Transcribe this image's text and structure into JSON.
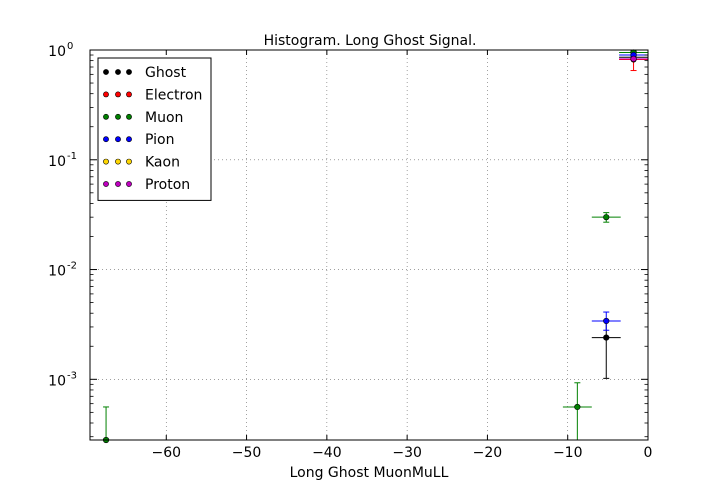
{
  "chart_data": {
    "type": "scatter",
    "title": "Histogram. Long Ghost Signal.",
    "xlabel": "Long Ghost MuonMuLL",
    "ylabel": "",
    "xlim": [
      -69.5,
      0
    ],
    "ylim": [
      0.00028,
      1.0
    ],
    "yscale": "log",
    "grid": true,
    "legend_position": "top-left",
    "x_ticks": [
      {
        "value": -60,
        "label": "−60"
      },
      {
        "value": -50,
        "label": "−50"
      },
      {
        "value": -40,
        "label": "−40"
      },
      {
        "value": -30,
        "label": "−30"
      },
      {
        "value": -20,
        "label": "−20"
      },
      {
        "value": -10,
        "label": "−10"
      },
      {
        "value": 0,
        "label": "0"
      }
    ],
    "y_ticks": [
      {
        "value": 0.001,
        "base": "10",
        "exp": "-3"
      },
      {
        "value": 0.01,
        "base": "10",
        "exp": "-2"
      },
      {
        "value": 0.1,
        "base": "10",
        "exp": "-1"
      },
      {
        "value": 1,
        "base": "10",
        "exp": "0"
      }
    ],
    "series": [
      {
        "name": "Ghost",
        "color": "#000000",
        "points": [
          {
            "x": -5.2,
            "xerr": 1.8,
            "y": 0.0024,
            "ylo": 0.00102,
            "yhi": 0.0034
          },
          {
            "x": -1.8,
            "xerr": 1.8,
            "y": 0.86,
            "ylo": 0.83,
            "yhi": 0.89
          }
        ]
      },
      {
        "name": "Electron",
        "color": "#ff0000",
        "points": [
          {
            "x": -1.8,
            "xerr": 1.8,
            "y": 0.82,
            "ylo": 0.65,
            "yhi": 0.97
          }
        ]
      },
      {
        "name": "Muon",
        "color": "#008000",
        "points": [
          {
            "x": -67.5,
            "xerr": 1.8,
            "y": 0.00028,
            "ylo": 0.00028,
            "yhi": 0.00056
          },
          {
            "x": -8.8,
            "xerr": 1.8,
            "y": 0.00056,
            "ylo": 0.00028,
            "yhi": 0.00093
          },
          {
            "x": -5.2,
            "xerr": 1.8,
            "y": 0.03,
            "ylo": 0.027,
            "yhi": 0.033
          },
          {
            "x": -1.8,
            "xerr": 1.8,
            "y": 0.95,
            "ylo": 0.92,
            "yhi": 0.98
          }
        ]
      },
      {
        "name": "Pion",
        "color": "#0000ff",
        "points": [
          {
            "x": -5.2,
            "xerr": 1.8,
            "y": 0.0034,
            "ylo": 0.0028,
            "yhi": 0.0041
          },
          {
            "x": -1.8,
            "xerr": 1.8,
            "y": 0.9,
            "ylo": 0.88,
            "yhi": 0.92
          }
        ]
      },
      {
        "name": "Kaon",
        "color": "#ffd700",
        "points": []
      },
      {
        "name": "Proton",
        "color": "#bf00bf",
        "points": [
          {
            "x": -1.8,
            "xerr": 1.8,
            "y": 0.83,
            "ylo": 0.81,
            "yhi": 0.85
          }
        ]
      }
    ]
  }
}
